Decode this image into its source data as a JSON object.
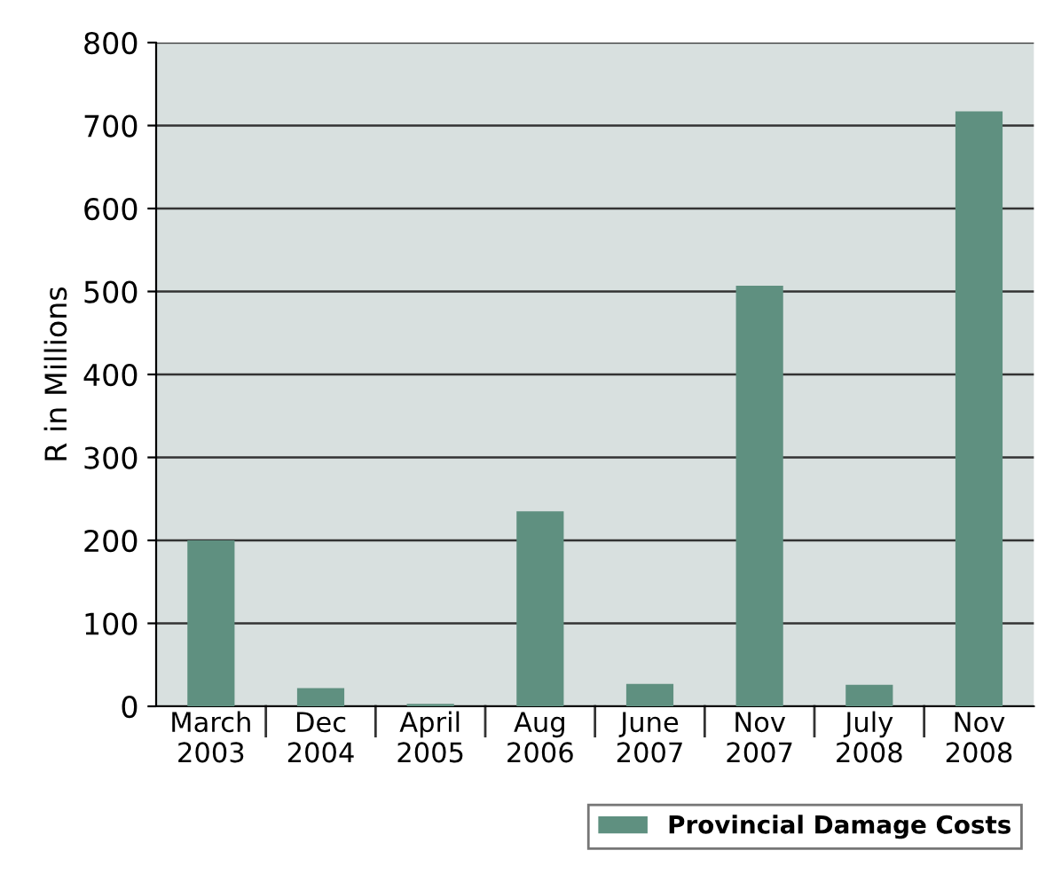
{
  "chart_data": {
    "type": "bar",
    "ylabel": "R in Millions",
    "categories": [
      "March\n2003",
      "Dec\n2004",
      "April\n2005",
      "Aug\n2006",
      "June\n2007",
      "Nov\n2007",
      "July\n2008",
      "Nov\n2008"
    ],
    "series": [
      {
        "name": "Provincial Damage Costs",
        "color": "#5f9080",
        "values": [
          200,
          22,
          3,
          235,
          27,
          507,
          26,
          717
        ]
      }
    ],
    "ylim": [
      0,
      800
    ],
    "yticks": [
      0,
      100,
      200,
      300,
      400,
      500,
      600,
      700,
      800
    ],
    "grid": "y",
    "legend": "bottom right"
  }
}
